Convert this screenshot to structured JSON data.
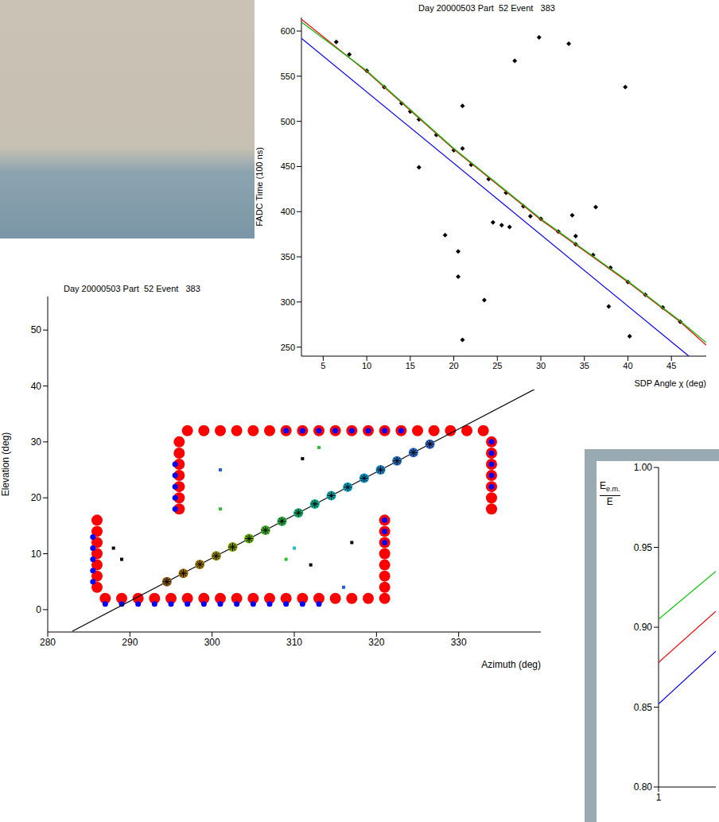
{
  "chart_data": [
    {
      "type": "scatter",
      "title": "Day 20000503 Part  52 Event   383",
      "xlabel": "SDP Angle χ (deg)",
      "ylabel": "FADC Time (100 ns)",
      "xlim": [
        2.5,
        49
      ],
      "xticks": [
        5,
        10,
        15,
        20,
        25,
        30,
        35,
        40,
        45
      ],
      "ylim": [
        240,
        615
      ],
      "yticks": [
        250,
        300,
        350,
        400,
        450,
        500,
        550,
        600
      ],
      "grid": false,
      "series": [
        {
          "type": "scatter",
          "marker": "diamond",
          "color": "#000000",
          "x": [
            6.5,
            8,
            10,
            12,
            14,
            15,
            16,
            18,
            20,
            22,
            24,
            26,
            28,
            30,
            32,
            34,
            36,
            38,
            40,
            42,
            44,
            46
          ],
          "y": [
            588,
            574,
            556,
            538,
            520,
            511,
            502,
            485,
            468,
            452,
            436,
            421,
            406,
            392,
            378,
            364,
            352,
            338,
            322,
            308,
            294,
            278
          ]
        },
        {
          "type": "scatter",
          "marker": "diamond",
          "color": "#000000",
          "x": [
            21,
            23.5,
            20.5,
            20.5,
            19,
            16,
            21,
            21,
            27,
            29.8,
            33.2,
            39.7,
            36.3,
            33.6,
            34,
            40.2,
            28.8,
            24.5,
            25.5,
            26.4,
            37.8
          ],
          "y": [
            258,
            302,
            328,
            356,
            374,
            449,
            470,
            517,
            567,
            593,
            586,
            538,
            405,
            396,
            373,
            262,
            395,
            388,
            385,
            383,
            295
          ]
        },
        {
          "type": "line",
          "color": "#ff0000",
          "x": [
            2.5,
            10,
            20,
            30,
            40,
            46,
            49
          ],
          "y": [
            613,
            555,
            469,
            391,
            322,
            278,
            252
          ]
        },
        {
          "type": "line",
          "color": "#00c000",
          "x": [
            2.5,
            10,
            20,
            30,
            40,
            46,
            49
          ],
          "y": [
            610,
            556,
            470,
            392,
            323,
            279,
            255
          ]
        },
        {
          "type": "line",
          "color": "#0000ff",
          "x": [
            2.5,
            47
          ],
          "y": [
            592,
            240
          ]
        }
      ]
    },
    {
      "type": "scatter",
      "title": "Day 20000503 Part  52 Event   383",
      "xlabel": "Azimuth (deg)",
      "ylabel": "Elevation (deg)",
      "xlim": [
        280,
        340
      ],
      "xticks": [
        280,
        290,
        300,
        310,
        320,
        330
      ],
      "ylim": [
        -4,
        56
      ],
      "yticks": [
        0,
        10,
        20,
        30,
        40,
        50
      ],
      "grid": false,
      "series": [
        {
          "type": "scatter",
          "marker": "square",
          "x": [
            286,
            288,
            289,
            301,
            309,
            310,
            312,
            317,
            316,
            311,
            313,
            301
          ],
          "y": [
            14.5,
            11,
            9,
            18,
            9,
            11,
            8,
            12,
            4,
            27,
            29,
            25
          ],
          "colors": [
            "#000000",
            "#000000",
            "#000000",
            "#30c030",
            "#30c030",
            "#20c0c0",
            "#000000",
            "#000000",
            "#2060e0",
            "#000000",
            "#30c030",
            "#2060e0"
          ]
        },
        {
          "type": "scatter",
          "marker": "circle",
          "color": "#ff0000",
          "x": [
            287,
            289,
            291,
            293,
            295,
            297,
            299,
            301,
            303,
            305,
            307,
            309,
            311,
            313,
            315,
            317,
            319,
            321,
            297,
            299,
            301,
            303,
            305,
            307,
            309,
            311,
            313,
            315,
            317,
            319,
            321,
            323,
            325,
            327,
            329,
            331,
            333,
            286,
            286,
            286,
            286,
            286,
            286,
            286,
            296,
            296,
            296,
            296,
            296,
            296,
            296,
            321,
            321,
            321,
            321,
            321,
            321,
            321,
            334,
            334,
            334,
            334,
            334,
            334,
            334
          ],
          "y": [
            2,
            2,
            2,
            2,
            2,
            2,
            2,
            2,
            2,
            2,
            2,
            2,
            2,
            2,
            2,
            2,
            2,
            2,
            32,
            32,
            32,
            32,
            32,
            32,
            32,
            32,
            32,
            32,
            32,
            32,
            32,
            32,
            32,
            32,
            32,
            32,
            32,
            4,
            6,
            8,
            10,
            12,
            14,
            16,
            18,
            20,
            22,
            24,
            26,
            28,
            30,
            4,
            6,
            8,
            10,
            12,
            14,
            16,
            18,
            20,
            22,
            24,
            26,
            28,
            30
          ]
        },
        {
          "type": "scatter",
          "marker": "dot",
          "color": "#0000ff",
          "x": [
            287,
            289,
            291,
            293,
            295,
            297,
            299,
            301,
            303,
            305,
            307,
            309,
            311,
            313,
            309,
            311,
            313,
            315,
            317,
            319,
            321,
            323,
            285.5,
            285.5,
            285.5,
            285.5,
            285.5,
            295.5,
            295.5,
            295.5,
            295.5,
            295.5,
            321,
            321,
            321,
            334,
            334,
            334,
            334,
            334
          ],
          "y": [
            1,
            1,
            1,
            1,
            1,
            1,
            1,
            1,
            1,
            1,
            1,
            1,
            1,
            1,
            32,
            32,
            32,
            32,
            32,
            32,
            32,
            32,
            5,
            7,
            9,
            11,
            13,
            18,
            20,
            22,
            24,
            26,
            12,
            14,
            16,
            22,
            24,
            26,
            28,
            30
          ]
        },
        {
          "type": "line",
          "color": "#000000",
          "x": [
            283,
            340
          ],
          "y": [
            -3.86,
            40
          ]
        },
        {
          "type": "scatter",
          "marker": "asterisk",
          "x": [
            294.5,
            296.5,
            298.5,
            300.5,
            302.5,
            304.5,
            306.5,
            308.5,
            310.5,
            312.5,
            314.5,
            316.5,
            318.5,
            320.5,
            322.5,
            324.5,
            326.5
          ],
          "y": [
            5,
            6.5,
            8.1,
            9.6,
            11.2,
            12.7,
            14.2,
            15.8,
            17.3,
            18.9,
            20.4,
            21.9,
            23.5,
            25,
            26.6,
            28.1,
            29.6
          ],
          "colors": [
            "#8a5a10",
            "#9a6a00",
            "#a07800",
            "#908800",
            "#7a9800",
            "#60a800",
            "#40b020",
            "#20b040",
            "#10b070",
            "#00b090",
            "#00a8a8",
            "#00a0c0",
            "#0090c8",
            "#1080c8",
            "#2070c0",
            "#2868c0",
            "#3060c0"
          ]
        }
      ]
    },
    {
      "type": "line",
      "ylabel": {
        "numerator": "E",
        "subscript": "e.m.",
        "denominator": "E"
      },
      "xlim": [
        1,
        2
      ],
      "xticks": [
        1
      ],
      "ylim": [
        0.8,
        1.0
      ],
      "yticks": [
        {
          "value": 0.8,
          "label": "0.80"
        },
        0.85,
        {
          "value": 0.9,
          "label": "0.90"
        },
        0.95,
        {
          "value": 1.0,
          "label": "1.00"
        }
      ],
      "grid": false,
      "series": [
        {
          "type": "line",
          "color": "#00cc00",
          "x": [
            1,
            2
          ],
          "y": [
            0.905,
            0.935
          ]
        },
        {
          "type": "line",
          "color": "#ff0000",
          "x": [
            1,
            2
          ],
          "y": [
            0.878,
            0.91
          ]
        },
        {
          "type": "line",
          "color": "#0000ff",
          "x": [
            1,
            2
          ],
          "y": [
            0.852,
            0.885
          ]
        }
      ]
    }
  ]
}
